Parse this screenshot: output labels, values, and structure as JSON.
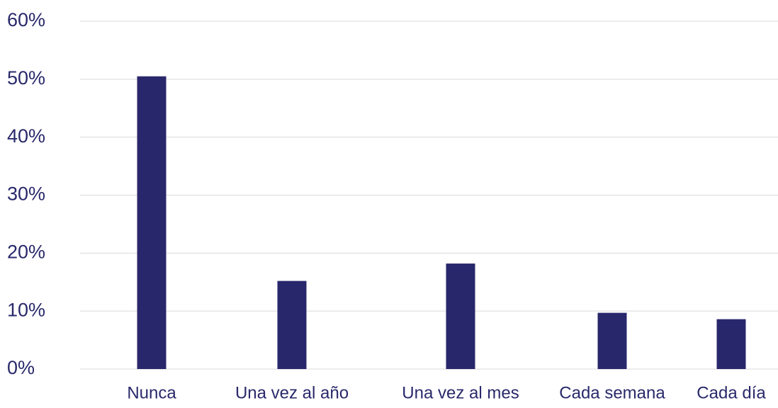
{
  "chart_data": {
    "type": "bar",
    "categories": [
      "Nunca",
      "Una vez al año",
      "Una vez al mes",
      "Cada semana",
      "Cada día"
    ],
    "values": [
      50.5,
      15.2,
      18.2,
      9.7,
      8.6
    ],
    "color": "#29276b",
    "ylim": [
      0,
      60
    ],
    "yticks": [
      {
        "value": 0,
        "label": "0%"
      },
      {
        "value": 10,
        "label": "10%"
      },
      {
        "value": 20,
        "label": "20%"
      },
      {
        "value": 30,
        "label": "30%"
      },
      {
        "value": 40,
        "label": "40%"
      },
      {
        "value": 50,
        "label": "50%"
      },
      {
        "value": 60,
        "label": "60%"
      }
    ],
    "grid": true
  }
}
